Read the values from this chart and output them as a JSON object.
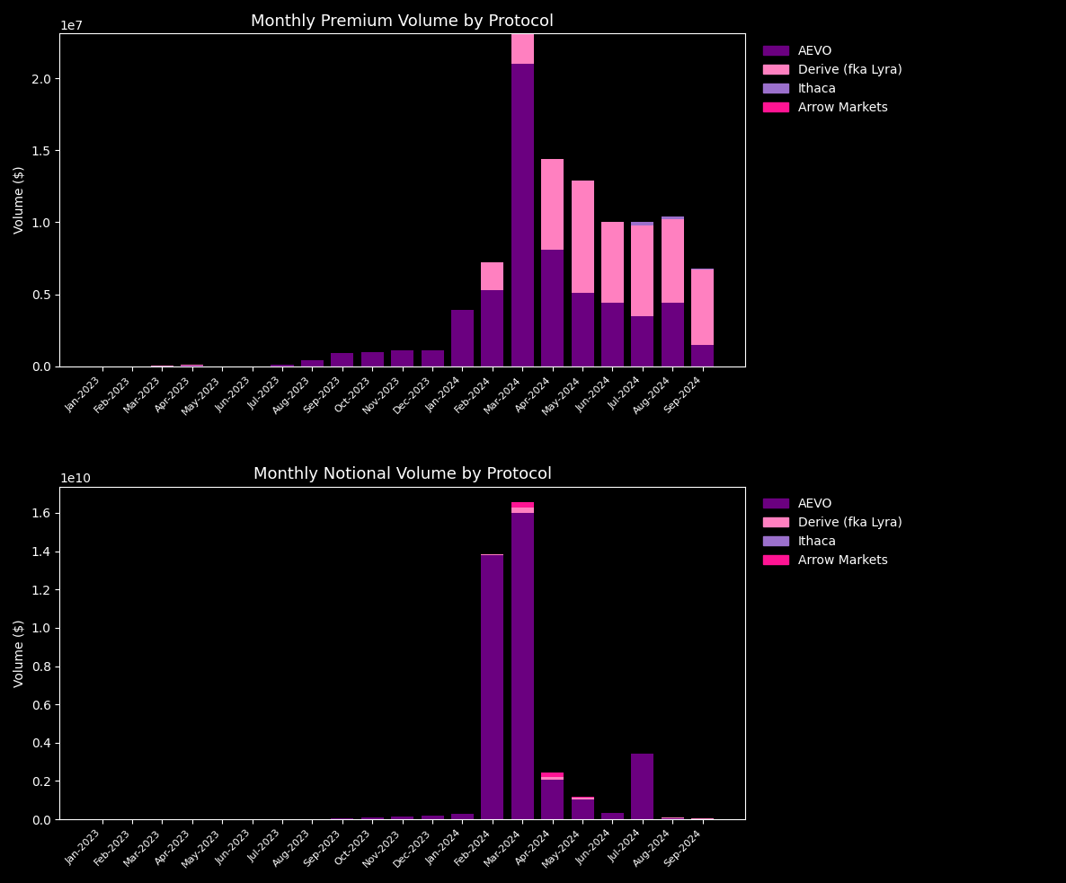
{
  "months": [
    "Jan-2023",
    "Feb-2023",
    "Mar-2023",
    "Apr-2023",
    "May-2023",
    "Jun-2023",
    "Jul-2023",
    "Aug-2023",
    "Sep-2023",
    "Oct-2023",
    "Nov-2023",
    "Dec-2023",
    "Jan-2024",
    "Feb-2024",
    "Mar-2024",
    "Apr-2024",
    "May-2024",
    "Jun-2024",
    "Jul-2024",
    "Aug-2024",
    "Sep-2024"
  ],
  "premium": {
    "AEVO": [
      0,
      0,
      0,
      50000,
      0,
      0,
      100000,
      400000,
      900000,
      1000000,
      1000000,
      1000000,
      3900000,
      5300000,
      21000000,
      8100000,
      5100000,
      4400000,
      3500000,
      4400000,
      1500000
    ],
    "Derive": [
      0,
      0,
      50000,
      100000,
      0,
      0,
      0,
      0,
      0,
      0,
      0,
      0,
      0,
      1900000,
      2100000,
      6300000,
      7800000,
      5600000,
      6300000,
      5800000,
      5200000
    ],
    "Ithaca": [
      0,
      0,
      0,
      0,
      0,
      0,
      0,
      0,
      0,
      0,
      0,
      0,
      0,
      0,
      0,
      0,
      0,
      0,
      200000,
      200000,
      100000
    ],
    "ArrowMarkets": [
      0,
      0,
      0,
      0,
      0,
      0,
      0,
      0,
      0,
      0,
      0,
      0,
      0,
      0,
      0,
      0,
      0,
      0,
      0,
      0,
      0
    ]
  },
  "notional": {
    "AEVO": [
      0,
      0,
      0,
      0,
      0,
      0,
      0,
      0,
      30000000,
      100000000,
      170000000,
      200000000,
      300000000,
      13800000000,
      16000000000,
      2050000000,
      1050000000,
      330000000,
      3450000000,
      60000000,
      20000000
    ],
    "Derive": [
      0,
      0,
      0,
      0,
      0,
      0,
      0,
      0,
      0,
      0,
      0,
      0,
      0,
      30000000,
      300000000,
      180000000,
      80000000,
      20000000,
      0,
      50000000,
      20000000
    ],
    "Ithaca": [
      0,
      0,
      0,
      0,
      0,
      0,
      0,
      0,
      0,
      0,
      0,
      0,
      0,
      0,
      0,
      0,
      0,
      0,
      0,
      0,
      0
    ],
    "ArrowMarkets": [
      0,
      0,
      0,
      0,
      0,
      0,
      0,
      0,
      0,
      0,
      0,
      0,
      0,
      0,
      250000000,
      200000000,
      50000000,
      0,
      0,
      0,
      0
    ]
  },
  "colors": {
    "AEVO": "#6B0080",
    "Derive": "#FF80C0",
    "Ithaca": "#9B70CC",
    "ArrowMarkets": "#FF1493"
  },
  "title_premium": "Monthly Premium Volume by Protocol",
  "title_notional": "Monthly Notional Volume by Protocol",
  "ylabel": "Volume ($)",
  "background_color": "#000000",
  "text_color": "#ffffff",
  "legend_labels": {
    "AEVO": "AEVO",
    "Derive": "Derive (fka Lyra)",
    "Ithaca": "Ithaca",
    "ArrowMarkets": "Arrow Markets"
  }
}
